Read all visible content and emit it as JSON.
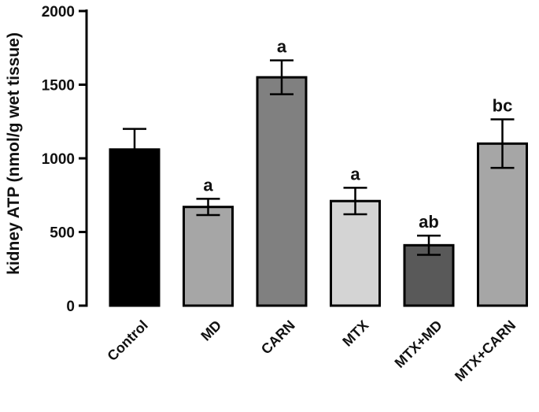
{
  "chart_data": {
    "type": "bar",
    "title": "",
    "xlabel": "",
    "ylabel": "kidney ATP (nmol/g wet tissue)",
    "ylim": [
      0,
      2000
    ],
    "yticks": [
      0,
      500,
      1000,
      1500,
      2000
    ],
    "categories": [
      "Control",
      "MD",
      "CARN",
      "MTX",
      "MTX+MD",
      "MTX+CARN"
    ],
    "values": [
      1060,
      670,
      1550,
      710,
      410,
      1100
    ],
    "errors": [
      140,
      55,
      115,
      90,
      65,
      165
    ],
    "significance": [
      "",
      "a",
      "a",
      "a",
      "ab",
      "bc"
    ],
    "bar_colors": [
      "#000000",
      "#a6a6a6",
      "#808080",
      "#d4d4d4",
      "#595959",
      "#a6a6a6"
    ],
    "grid": false,
    "legend": "none"
  }
}
